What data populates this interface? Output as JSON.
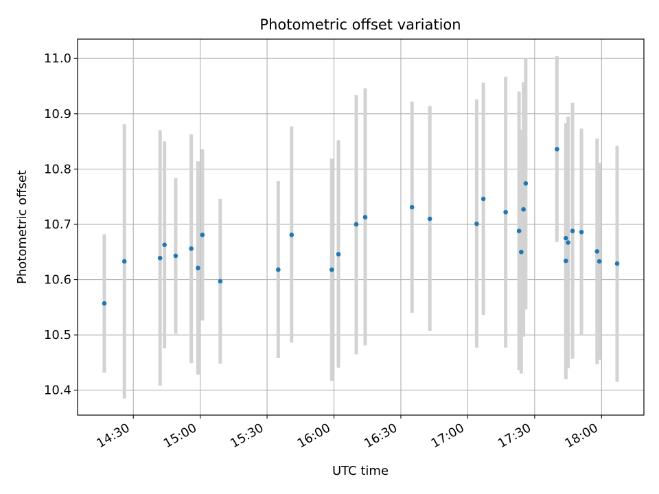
{
  "chart_data": {
    "type": "scatter",
    "title": "Photometric offset variation",
    "xlabel": "UTC time",
    "ylabel": "Photometric offset",
    "x_ticks": [
      "14:30",
      "15:00",
      "15:30",
      "16:00",
      "16:30",
      "17:00",
      "17:30",
      "18:00"
    ],
    "y_ticks": [
      "10.4",
      "10.5",
      "10.6",
      "10.7",
      "10.8",
      "10.9",
      "11.0"
    ],
    "xlim": [
      "14:05",
      "18:19"
    ],
    "ylim": [
      10.355,
      11.035
    ],
    "grid": true,
    "colors": {
      "points": "#1f77b4",
      "errorbars": "#d3d3d3",
      "grid": "#b0b0b0"
    },
    "points": [
      {
        "x": "14:17",
        "y": 10.557,
        "ylow": 10.432,
        "yhigh": 10.682
      },
      {
        "x": "14:26",
        "y": 10.633,
        "ylow": 10.385,
        "yhigh": 10.881
      },
      {
        "x": "14:42",
        "y": 10.639,
        "ylow": 10.408,
        "yhigh": 10.87
      },
      {
        "x": "14:44",
        "y": 10.663,
        "ylow": 10.476,
        "yhigh": 10.85
      },
      {
        "x": "14:49",
        "y": 10.643,
        "ylow": 10.502,
        "yhigh": 10.784
      },
      {
        "x": "14:56",
        "y": 10.656,
        "ylow": 10.449,
        "yhigh": 10.863
      },
      {
        "x": "14:59",
        "y": 10.621,
        "ylow": 10.428,
        "yhigh": 10.814
      },
      {
        "x": "15:01",
        "y": 10.681,
        "ylow": 10.526,
        "yhigh": 10.836
      },
      {
        "x": "15:09",
        "y": 10.597,
        "ylow": 10.448,
        "yhigh": 10.746
      },
      {
        "x": "15:35",
        "y": 10.618,
        "ylow": 10.458,
        "yhigh": 10.778
      },
      {
        "x": "15:41",
        "y": 10.681,
        "ylow": 10.486,
        "yhigh": 10.877
      },
      {
        "x": "15:59",
        "y": 10.618,
        "ylow": 10.417,
        "yhigh": 10.819
      },
      {
        "x": "16:02",
        "y": 10.646,
        "ylow": 10.441,
        "yhigh": 10.852
      },
      {
        "x": "16:10",
        "y": 10.7,
        "ylow": 10.465,
        "yhigh": 10.934
      },
      {
        "x": "16:14",
        "y": 10.713,
        "ylow": 10.481,
        "yhigh": 10.946
      },
      {
        "x": "16:35",
        "y": 10.731,
        "ylow": 10.54,
        "yhigh": 10.922
      },
      {
        "x": "16:43",
        "y": 10.71,
        "ylow": 10.507,
        "yhigh": 10.914
      },
      {
        "x": "17:04",
        "y": 10.701,
        "ylow": 10.477,
        "yhigh": 10.926
      },
      {
        "x": "17:07",
        "y": 10.746,
        "ylow": 10.536,
        "yhigh": 10.956
      },
      {
        "x": "17:17",
        "y": 10.722,
        "ylow": 10.477,
        "yhigh": 10.967
      },
      {
        "x": "17:23",
        "y": 10.688,
        "ylow": 10.436,
        "yhigh": 10.94
      },
      {
        "x": "17:24",
        "y": 10.65,
        "ylow": 10.43,
        "yhigh": 10.871
      },
      {
        "x": "17:25",
        "y": 10.727,
        "ylow": 10.497,
        "yhigh": 10.957
      },
      {
        "x": "17:26",
        "y": 10.774,
        "ylow": 10.546,
        "yhigh": 11.0
      },
      {
        "x": "17:40",
        "y": 10.836,
        "ylow": 10.668,
        "yhigh": 11.004
      },
      {
        "x": "17:44",
        "y": 10.675,
        "ylow": 10.468,
        "yhigh": 10.883
      },
      {
        "x": "17:44",
        "y": 10.634,
        "ylow": 10.42,
        "yhigh": 10.848
      },
      {
        "x": "17:45",
        "y": 10.667,
        "ylow": 10.44,
        "yhigh": 10.895
      },
      {
        "x": "17:47",
        "y": 10.688,
        "ylow": 10.457,
        "yhigh": 10.92
      },
      {
        "x": "17:51",
        "y": 10.686,
        "ylow": 10.5,
        "yhigh": 10.873
      },
      {
        "x": "17:58",
        "y": 10.651,
        "ylow": 10.447,
        "yhigh": 10.855
      },
      {
        "x": "17:59",
        "y": 10.633,
        "ylow": 10.455,
        "yhigh": 10.811
      },
      {
        "x": "18:07",
        "y": 10.629,
        "ylow": 10.415,
        "yhigh": 10.842
      }
    ]
  }
}
